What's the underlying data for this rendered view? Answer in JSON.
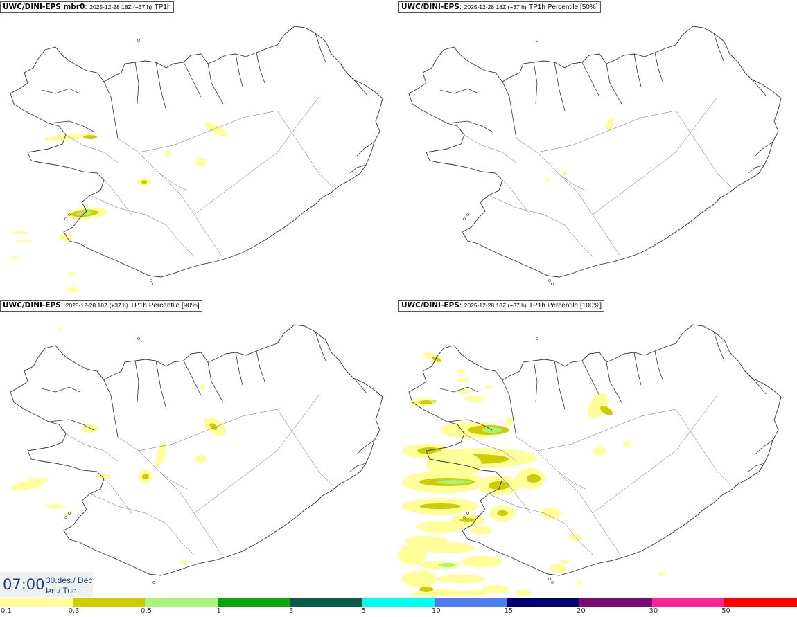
{
  "panels": [
    {
      "model": "UWC/DINI-EPS mbr0",
      "run": "2025-12-28 18Z (+37 h)",
      "param": "TP1h"
    },
    {
      "model": "UWC/DINI-EPS",
      "run": "2025-12-28 18Z (+37 h)",
      "param": "TP1h Percentile [50%]"
    },
    {
      "model": "UWC/DINI-EPS",
      "run": "2025-12-28 18Z (+37 h)",
      "param": "TP1h Percentile [90%]"
    },
    {
      "model": "UWC/DINI-EPS",
      "run": "2025-12-28 18Z (+37 h)",
      "param": "TP1h Percentile [100%]"
    }
  ],
  "valid_time": {
    "time": "07:00",
    "date_line1": "30.des./ Dec",
    "date_line2": "Þri./ Tue"
  },
  "legend": {
    "ticks": [
      "0.1",
      "0.3",
      "0.5",
      "1",
      "3",
      "5",
      "10",
      "15",
      "20",
      "30",
      "50"
    ],
    "colors": [
      "#ffff99",
      "#cccc00",
      "#a6f57a",
      "#0aa30a",
      "#0a5c47",
      "#00ffee",
      "#4f7cf0",
      "#000070",
      "#7a0a6f",
      "#ff2296",
      "#ff0000"
    ]
  },
  "colors": {
    "coast": "#333333",
    "text": "#1b3f74",
    "light": "#ffff99",
    "mid": "#cccc00",
    "green": "#a6f57a"
  }
}
